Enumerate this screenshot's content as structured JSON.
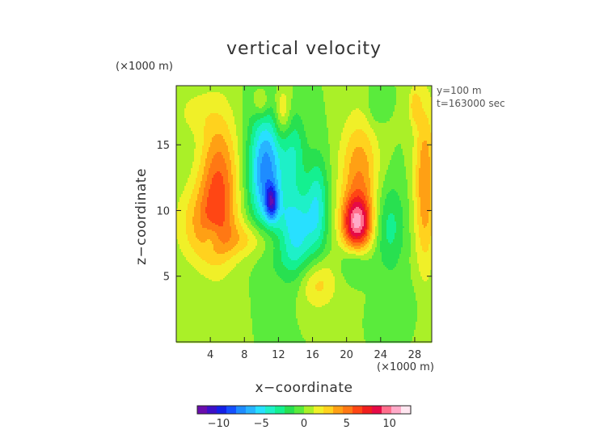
{
  "chart_data": {
    "type": "heatmap",
    "title": "vertical velocity",
    "xlabel": "x−coordinate",
    "ylabel": "z−coordinate",
    "x_scale_label": "(×1000 m)",
    "z_scale_label": "(×1000 m)",
    "annotations": [
      "y=100 m",
      "t=163000 sec"
    ],
    "xlim": [
      0,
      30
    ],
    "ylim": [
      0,
      19.5
    ],
    "x_ticks": [
      4,
      8,
      12,
      16,
      20,
      24,
      28
    ],
    "x_tick_labels": [
      "4",
      "8",
      "12",
      "16",
      "20",
      "24",
      "28"
    ],
    "y_ticks": [
      5,
      10,
      15
    ],
    "y_tick_labels": [
      "5",
      "10",
      "15"
    ],
    "colorbar": {
      "range": [
        -12.5,
        12.5
      ],
      "ticks": [
        -10,
        -5,
        0,
        5,
        10
      ],
      "tick_labels": [
        "−10",
        "−5",
        "0",
        "5",
        "10"
      ],
      "colors": [
        "#6a0dad",
        "#3d10c8",
        "#1420e6",
        "#1450ff",
        "#1e8cff",
        "#28b4ff",
        "#28e0ff",
        "#1ef0c8",
        "#14f090",
        "#28e050",
        "#5aeb3c",
        "#aaf028",
        "#f0f028",
        "#ffd21e",
        "#ffa014",
        "#ff7814",
        "#ff4614",
        "#f01e1e",
        "#e60a46",
        "#ff6e8c",
        "#ffaac8",
        "#ffe6f0"
      ]
    },
    "field": {
      "background": 0,
      "features": [
        {
          "x": 10.5,
          "z": 13.0,
          "sx": 1.4,
          "sz": 3.2,
          "v": -7.5
        },
        {
          "x": 11.2,
          "z": 10.6,
          "sx": 0.5,
          "sz": 0.9,
          "v": -6.0
        },
        {
          "x": 14.0,
          "z": 8.2,
          "sx": 1.6,
          "sz": 2.4,
          "v": -5.5
        },
        {
          "x": 16.6,
          "z": 10.5,
          "sx": 0.9,
          "sz": 2.6,
          "v": -3.8
        },
        {
          "x": 13.8,
          "z": 14.5,
          "sx": 1.0,
          "sz": 2.2,
          "v": -3.0
        },
        {
          "x": 21.2,
          "z": 9.0,
          "sx": 1.2,
          "sz": 1.4,
          "v": 8.5
        },
        {
          "x": 21.5,
          "z": 12.5,
          "sx": 1.6,
          "sz": 3.2,
          "v": 4.5
        },
        {
          "x": 5.0,
          "z": 12.0,
          "sx": 1.6,
          "sz": 3.8,
          "v": 5.5
        },
        {
          "x": 3.0,
          "z": 9.0,
          "sx": 2.2,
          "sz": 2.2,
          "v": 3.0
        },
        {
          "x": 9.0,
          "z": 7.8,
          "sx": 2.8,
          "sz": 1.0,
          "v": 2.6
        },
        {
          "x": 16.5,
          "z": 4.5,
          "sx": 1.6,
          "sz": 1.4,
          "v": 3.0
        },
        {
          "x": 12.5,
          "z": 17.5,
          "sx": 0.7,
          "sz": 1.4,
          "v": 3.0
        },
        {
          "x": 10.0,
          "z": 18.2,
          "sx": 0.7,
          "sz": 0.8,
          "v": 2.5
        },
        {
          "x": 29.2,
          "z": 12.0,
          "sx": 0.9,
          "sz": 4.5,
          "v": 4.5
        },
        {
          "x": 28.0,
          "z": 18.0,
          "sx": 0.5,
          "sz": 1.0,
          "v": 2.5
        },
        {
          "x": 25.0,
          "z": 8.8,
          "sx": 1.3,
          "sz": 2.4,
          "v": -2.8
        },
        {
          "x": 4.2,
          "z": 8.0,
          "sx": 0.8,
          "sz": 0.8,
          "v": -2.0
        },
        {
          "x": 21.0,
          "z": 6.0,
          "sx": 1.2,
          "sz": 0.9,
          "v": -2.2
        },
        {
          "x": 23.5,
          "z": 18.0,
          "sx": 0.8,
          "sz": 1.1,
          "v": -1.5
        },
        {
          "x": 2.0,
          "z": 17.5,
          "sx": 1.6,
          "sz": 1.3,
          "v": 1.3
        },
        {
          "x": 26.0,
          "z": 3.0,
          "sx": 1.5,
          "sz": 1.2,
          "v": -1.0
        }
      ]
    }
  }
}
